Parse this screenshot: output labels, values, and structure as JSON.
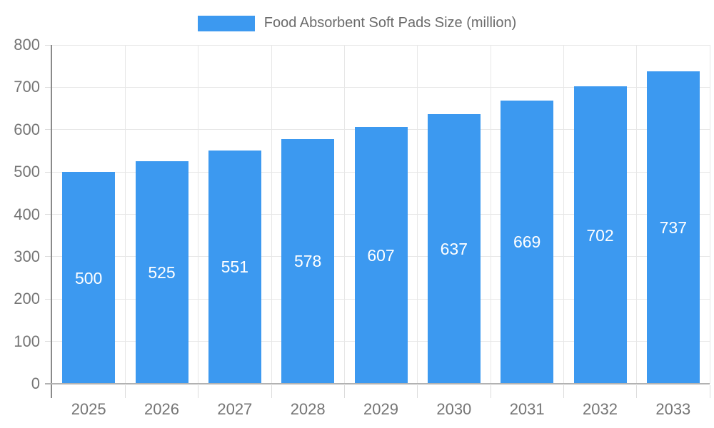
{
  "chart_data": {
    "type": "bar",
    "title": "Food Absorbent Soft Pads Size (million)",
    "categories": [
      "2025",
      "2026",
      "2027",
      "2028",
      "2029",
      "2030",
      "2031",
      "2032",
      "2033"
    ],
    "series": [
      {
        "name": "Food Absorbent Soft Pads Size (million)",
        "values": [
          500,
          525,
          551,
          578,
          607,
          637,
          669,
          702,
          737
        ]
      }
    ],
    "xlabel": "",
    "ylabel": "",
    "ylim": [
      0,
      800
    ],
    "ytick_step": 100,
    "grid": true,
    "legend_position": "top",
    "bar_value_labels_shown": true,
    "colors": {
      "bar": "#3C99F0",
      "grid": "#E7E7E7",
      "tick": "#DCDCDC",
      "y_axis_line": "#8A8A8A",
      "x_axis_line": "#B2B2B2",
      "axis_label": "#757575",
      "legend_label": "#6B6B6B",
      "bar_label": "#FFFFFF",
      "background": "#FFFFFF"
    }
  }
}
